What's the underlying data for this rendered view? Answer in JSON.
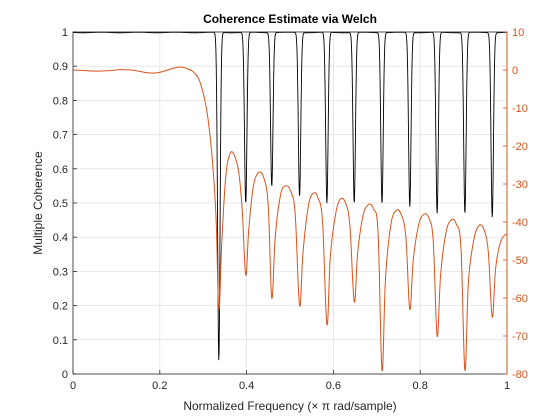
{
  "chart_data": {
    "type": "line",
    "title": "Coherence Estimate via Welch",
    "xlabel": "Normalized  Frequency    (× π  rad/sample)",
    "ylabel": "Multiple Coherence",
    "xlim": [
      0,
      1
    ],
    "ylim": [
      0,
      1
    ],
    "y2lim": [
      -80,
      10
    ],
    "grid": true,
    "xticks": [
      "0",
      "0.2",
      "0.4",
      "0.6",
      "0.8",
      "1"
    ],
    "yticks": [
      "0",
      "0.1",
      "0.2",
      "0.3",
      "0.4",
      "0.5",
      "0.6",
      "0.7",
      "0.8",
      "0.9",
      "1"
    ],
    "y2ticks": [
      "10",
      "0",
      "-10",
      "-20",
      "-30",
      "-40",
      "-50",
      "-60",
      "-70",
      "-80"
    ],
    "colors": {
      "coherence": "#000000",
      "response": "#d95319"
    },
    "series": [
      {
        "axis": "left",
        "color": "#000000",
        "notch_frequencies": [
          0.336,
          0.398,
          0.458,
          0.522,
          0.585,
          0.648,
          0.712,
          0.776,
          0.839,
          0.903,
          0.966
        ],
        "notch_minima": [
          0.04,
          0.5,
          0.55,
          0.52,
          0.5,
          0.5,
          0.5,
          0.49,
          0.47,
          0.47,
          0.46
        ]
      },
      {
        "axis": "right",
        "color": "#d95319",
        "points": [
          [
            0.0,
            0.0
          ],
          [
            0.02,
            -0.1
          ],
          [
            0.05,
            -0.3
          ],
          [
            0.08,
            -0.2
          ],
          [
            0.11,
            0.1
          ],
          [
            0.14,
            -0.1
          ],
          [
            0.17,
            -0.7
          ],
          [
            0.19,
            -0.8
          ],
          [
            0.21,
            -0.3
          ],
          [
            0.24,
            0.7
          ],
          [
            0.26,
            0.5
          ],
          [
            0.28,
            -0.8
          ],
          [
            0.295,
            -4
          ],
          [
            0.31,
            -12
          ],
          [
            0.322,
            -25
          ],
          [
            0.33,
            -40
          ],
          [
            0.336,
            -63
          ],
          [
            0.343,
            -45
          ],
          [
            0.352,
            -28
          ],
          [
            0.362,
            -22
          ],
          [
            0.372,
            -22.5
          ],
          [
            0.382,
            -27
          ],
          [
            0.39,
            -37
          ],
          [
            0.398,
            -54
          ],
          [
            0.405,
            -42
          ],
          [
            0.415,
            -31
          ],
          [
            0.427,
            -27
          ],
          [
            0.44,
            -28.5
          ],
          [
            0.45,
            -36
          ],
          [
            0.458,
            -60
          ],
          [
            0.466,
            -44
          ],
          [
            0.478,
            -33
          ],
          [
            0.49,
            -30.5
          ],
          [
            0.502,
            -32
          ],
          [
            0.512,
            -38
          ],
          [
            0.522,
            -62
          ],
          [
            0.53,
            -48
          ],
          [
            0.542,
            -36
          ],
          [
            0.553,
            -32.5
          ],
          [
            0.564,
            -33.5
          ],
          [
            0.575,
            -40
          ],
          [
            0.585,
            -67
          ],
          [
            0.593,
            -49
          ],
          [
            0.605,
            -38
          ],
          [
            0.616,
            -34
          ],
          [
            0.628,
            -35
          ],
          [
            0.638,
            -41
          ],
          [
            0.648,
            -61
          ],
          [
            0.656,
            -48
          ],
          [
            0.668,
            -38.5
          ],
          [
            0.68,
            -35.5
          ],
          [
            0.692,
            -36.5
          ],
          [
            0.703,
            -43
          ],
          [
            0.712,
            -79
          ],
          [
            0.72,
            -55
          ],
          [
            0.732,
            -41
          ],
          [
            0.744,
            -37
          ],
          [
            0.756,
            -38
          ],
          [
            0.767,
            -44
          ],
          [
            0.776,
            -63
          ],
          [
            0.784,
            -50
          ],
          [
            0.796,
            -41
          ],
          [
            0.808,
            -38
          ],
          [
            0.82,
            -39
          ],
          [
            0.83,
            -45
          ],
          [
            0.839,
            -70
          ],
          [
            0.847,
            -54
          ],
          [
            0.859,
            -43
          ],
          [
            0.871,
            -39.5
          ],
          [
            0.883,
            -40.5
          ],
          [
            0.894,
            -47
          ],
          [
            0.903,
            -79
          ],
          [
            0.911,
            -56
          ],
          [
            0.923,
            -45
          ],
          [
            0.935,
            -41
          ],
          [
            0.947,
            -42
          ],
          [
            0.957,
            -48
          ],
          [
            0.966,
            -65
          ],
          [
            0.974,
            -52
          ],
          [
            0.986,
            -45
          ],
          [
            1.0,
            -43
          ]
        ]
      }
    ]
  }
}
